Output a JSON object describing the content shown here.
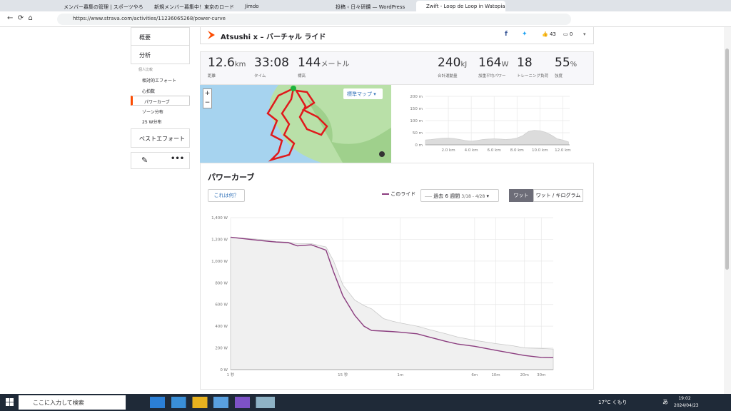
{
  "browser": {
    "tabs": [
      "メンバー募集の管理 | スポーツやろう!",
      "新規メンバー募集中！東京のロード",
      "Jimdo",
      "投稿 ‹ 日々研鑽 — WordPress",
      "Zwift - Loop de Loop in Watopia"
    ],
    "url": "https://www.strava.com/activities/11236065268/power-curve"
  },
  "sidebar": {
    "items": [
      "概要",
      "分析"
    ],
    "group_label": "個人比較",
    "sub_items": [
      "相対的エフォート",
      "心拍数",
      "パワーカーブ",
      "ゾーン分布",
      "25 W分布"
    ],
    "best": "ベストエフォート"
  },
  "activity": {
    "title": "Atsushi x – バーチャル ライド",
    "kudos": 43,
    "comments": 0
  },
  "stats": [
    {
      "value": 12.6,
      "unit": "km",
      "label": "距離"
    },
    {
      "value": "33:08",
      "label": "タイム"
    },
    {
      "value": 144,
      "unit": "メートル",
      "label": "標高"
    },
    {
      "value": 240,
      "unit": "kJ",
      "label": "合計運動量"
    },
    {
      "value": 164,
      "unit": "W",
      "label": "加重平均パワー"
    },
    {
      "value": 18,
      "label": "トレーニング負荷"
    },
    {
      "value": 55,
      "unit": "%",
      "label": "強度"
    }
  ],
  "map": {
    "button": "標準マップ",
    "zoom": [
      "+",
      "−"
    ]
  },
  "chart_data": [
    {
      "type": "area",
      "x": [
        0,
        0.5,
        1,
        1.5,
        2,
        2.5,
        3,
        3.5,
        4,
        4.5,
        5,
        5.5,
        6,
        6.5,
        7,
        7.5,
        8,
        8.5,
        9,
        9.5,
        10,
        10.5,
        11,
        11.5,
        12,
        12.5
      ],
      "values": [
        20,
        22,
        25,
        27,
        28,
        26,
        22,
        18,
        15,
        18,
        22,
        24,
        25,
        24,
        22,
        24,
        28,
        38,
        55,
        60,
        58,
        52,
        40,
        25,
        20,
        12
      ],
      "color": "#cfcfcf",
      "xlim": [
        0,
        12.6
      ],
      "ylim": [
        0,
        200
      ],
      "xticks": [
        {
          "value": 2,
          "label": "2.0 km"
        },
        {
          "value": 4,
          "label": "4.0 km"
        },
        {
          "value": 6,
          "label": "6.0 km"
        },
        {
          "value": 8,
          "label": "8.0 km"
        },
        {
          "value": 10,
          "label": "10.0 km"
        },
        {
          "value": 12,
          "label": "12.0 km"
        }
      ],
      "yticks": [
        {
          "value": 0,
          "label": "0 m"
        },
        {
          "value": 50,
          "label": "50 m"
        },
        {
          "value": 100,
          "label": "100 m"
        },
        {
          "value": 150,
          "label": "150 m"
        },
        {
          "value": 200,
          "label": "200 m"
        }
      ],
      "grid": true
    },
    {
      "type": "line",
      "title": "パワーカーブ",
      "help_button": "これは何？",
      "period_range": "3/18 - 4/28",
      "unit_buttons": [
        "ワット",
        "ワット / キログラム"
      ],
      "x": [
        1,
        2,
        3,
        4,
        5,
        7,
        10,
        12,
        15,
        20,
        25,
        30,
        40,
        50,
        60,
        90,
        120,
        180,
        240,
        360,
        600,
        900,
        1200,
        1800,
        2400
      ],
      "xscale": "log",
      "xlim": [
        1,
        2400
      ],
      "xticks": [
        {
          "value": 1,
          "label": "1 秒"
        },
        {
          "value": 15,
          "label": "15 秒"
        },
        {
          "value": 60,
          "label": "1m"
        },
        {
          "value": 360,
          "label": "6m"
        },
        {
          "value": 600,
          "label": "10m"
        },
        {
          "value": 1200,
          "label": "20m"
        },
        {
          "value": 1800,
          "label": "30m"
        }
      ],
      "ylim": [
        0,
        1400
      ],
      "yticks": [
        {
          "value": 0,
          "label": "0 W"
        },
        {
          "value": 200,
          "label": "200 W"
        },
        {
          "value": 400,
          "label": "400 W"
        },
        {
          "value": 600,
          "label": "600 W"
        },
        {
          "value": 800,
          "label": "800 W"
        },
        {
          "value": 1000,
          "label": "1,000 W"
        },
        {
          "value": 1200,
          "label": "1,200 W"
        },
        {
          "value": 1400,
          "label": "1,400 W"
        }
      ],
      "grid": true,
      "series": [
        {
          "name": "過去 6 週間",
          "color": "#c8c8c8",
          "fill": "#f0f0f0",
          "values": [
            1220,
            1200,
            1180,
            1175,
            1160,
            1160,
            1130,
            1000,
            780,
            640,
            590,
            560,
            470,
            445,
            430,
            400,
            370,
            330,
            300,
            270,
            240,
            220,
            200,
            195,
            190
          ]
        },
        {
          "name": "このライド",
          "color": "#8b3d7f",
          "values": [
            1220,
            1190,
            1175,
            1170,
            1140,
            1150,
            1100,
            900,
            680,
            500,
            400,
            360,
            355,
            350,
            345,
            330,
            300,
            260,
            235,
            215,
            178,
            150,
            130,
            112,
            110
          ]
        }
      ]
    }
  ],
  "taskbar": {
    "search": "ここに入力して検索",
    "weather": "17°C",
    "weather_desc": "くもり",
    "ime": "あ",
    "time": "19:02",
    "date": "2024/04/23"
  }
}
